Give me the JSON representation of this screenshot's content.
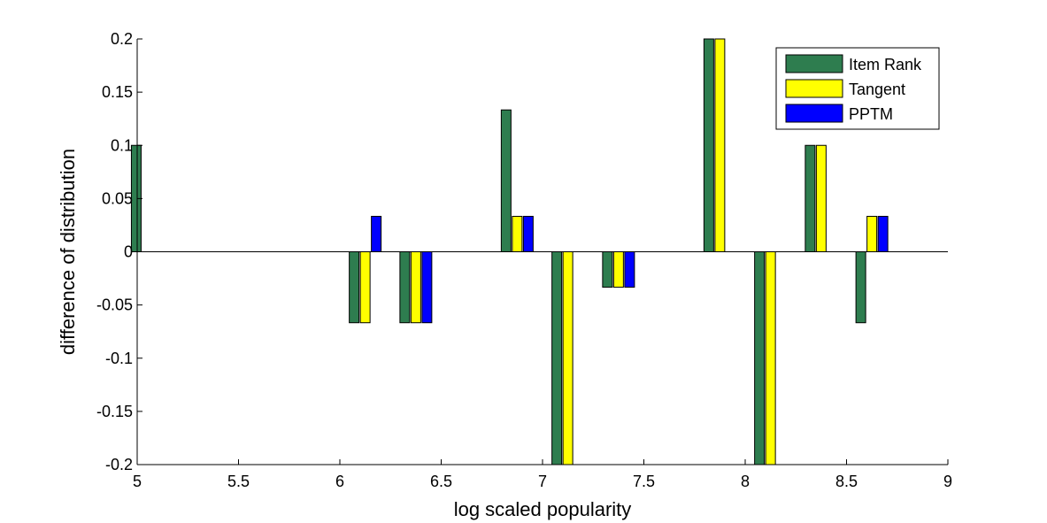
{
  "chart_data": {
    "type": "bar",
    "xlabel": "log scaled popularity",
    "ylabel": "difference of distribution",
    "xlim": [
      5,
      9
    ],
    "ylim": [
      -0.2,
      0.2
    ],
    "xticks": [
      "5",
      "5.5",
      "6",
      "6.5",
      "7",
      "7.5",
      "8",
      "8.5",
      "9"
    ],
    "yticks": [
      "-0.2",
      "-0.15",
      "-0.1",
      "-0.05",
      "0",
      "0.05",
      "0.1",
      "0.15",
      "0.2"
    ],
    "x": [
      5.05,
      6.125,
      6.375,
      6.875,
      7.125,
      7.375,
      7.875,
      8.125,
      8.375,
      8.625
    ],
    "series": [
      {
        "name": "Item Rank",
        "color": "#2e7d4f",
        "values": [
          0.1,
          -0.0667,
          -0.0667,
          0.1333,
          -0.2,
          -0.0333,
          0.2,
          -0.2,
          0.1,
          -0.0667
        ]
      },
      {
        "name": "Tangent",
        "color": "#ffff00",
        "values": [
          0,
          -0.0667,
          -0.0667,
          0.0333,
          -0.2,
          -0.0333,
          0.2,
          -0.2,
          0.1,
          0.0333
        ]
      },
      {
        "name": "PPTM",
        "color": "#0000ff",
        "values": [
          0,
          0.0333,
          -0.0667,
          0.0333,
          0,
          -0.0333,
          0,
          0,
          0,
          0.0333
        ]
      }
    ],
    "grid": false,
    "legend_position": "top-right"
  }
}
